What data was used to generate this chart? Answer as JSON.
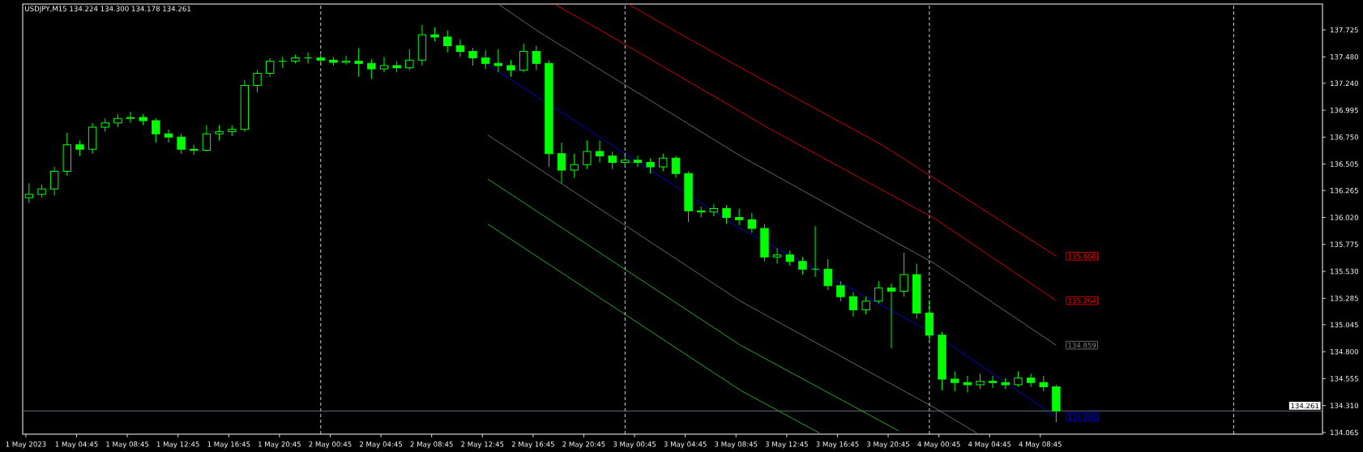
{
  "chart_data": {
    "type": "candlestick",
    "title": "USDJPY,M15  134.224 134.300 134.178 134.261",
    "color": "#00ff00",
    "x": [
      "2023-05-01T01:00",
      "2023-05-01T02:00",
      "2023-05-01T03:00",
      "2023-05-01T04:00",
      "2023-05-01T05:00",
      "2023-05-01T06:00",
      "2023-05-01T07:00",
      "2023-05-01T08:00",
      "2023-05-01T09:00",
      "2023-05-01T10:00",
      "2023-05-01T11:00",
      "2023-05-01T12:00",
      "2023-05-01T13:00",
      "2023-05-01T14:00",
      "2023-05-01T15:00",
      "2023-05-01T16:00",
      "2023-05-01T17:00",
      "2023-05-01T18:00",
      "2023-05-01T19:00",
      "2023-05-01T20:00",
      "2023-05-01T21:00",
      "2023-05-01T22:00",
      "2023-05-01T23:00",
      "2023-05-02T00:00",
      "2023-05-02T01:00",
      "2023-05-02T02:00",
      "2023-05-02T03:00",
      "2023-05-02T04:00",
      "2023-05-02T05:00",
      "2023-05-02T06:00",
      "2023-05-02T07:00",
      "2023-05-02T08:00",
      "2023-05-02T09:00",
      "2023-05-02T10:00",
      "2023-05-02T11:00",
      "2023-05-02T12:00",
      "2023-05-02T13:00",
      "2023-05-02T14:00",
      "2023-05-02T15:00",
      "2023-05-02T16:00",
      "2023-05-02T17:00",
      "2023-05-02T18:00",
      "2023-05-02T19:00",
      "2023-05-02T20:00",
      "2023-05-02T21:00",
      "2023-05-02T22:00",
      "2023-05-02T23:00",
      "2023-05-03T00:00",
      "2023-05-03T01:00",
      "2023-05-03T02:00",
      "2023-05-03T03:00",
      "2023-05-03T04:00",
      "2023-05-03T05:00",
      "2023-05-03T06:00",
      "2023-05-03T07:00",
      "2023-05-03T08:00",
      "2023-05-03T09:00",
      "2023-05-03T10:00",
      "2023-05-03T11:00",
      "2023-05-03T12:00",
      "2023-05-03T13:00",
      "2023-05-03T14:00",
      "2023-05-03T15:00",
      "2023-05-03T16:00",
      "2023-05-03T17:00",
      "2023-05-03T18:00",
      "2023-05-03T19:00",
      "2023-05-03T20:00",
      "2023-05-03T21:00",
      "2023-05-03T22:00",
      "2023-05-03T23:00",
      "2023-05-04T00:00",
      "2023-05-04T01:00",
      "2023-05-04T02:00",
      "2023-05-04T03:00",
      "2023-05-04T04:00",
      "2023-05-04T05:00",
      "2023-05-04T06:00",
      "2023-05-04T07:00",
      "2023-05-04T08:00",
      "2023-05-04T09:00",
      "2023-05-04T10:00"
    ],
    "ohlc": [
      [
        136.2,
        136.33,
        136.15,
        136.23
      ],
      [
        136.23,
        136.32,
        136.2,
        136.28
      ],
      [
        136.28,
        136.48,
        136.22,
        136.44
      ],
      [
        136.44,
        136.79,
        136.4,
        136.68
      ],
      [
        136.68,
        136.72,
        136.58,
        136.64
      ],
      [
        136.64,
        136.88,
        136.6,
        136.84
      ],
      [
        136.84,
        136.92,
        136.8,
        136.88
      ],
      [
        136.88,
        136.96,
        136.84,
        136.92
      ],
      [
        136.92,
        136.98,
        136.88,
        136.93
      ],
      [
        136.93,
        136.96,
        136.86,
        136.9
      ],
      [
        136.9,
        136.92,
        136.7,
        136.78
      ],
      [
        136.78,
        136.82,
        136.7,
        136.75
      ],
      [
        136.75,
        136.78,
        136.6,
        136.64
      ],
      [
        136.64,
        136.68,
        136.59,
        136.63
      ],
      [
        136.63,
        136.86,
        136.62,
        136.78
      ],
      [
        136.78,
        136.86,
        136.72,
        136.8
      ],
      [
        136.8,
        136.86,
        136.76,
        136.82
      ],
      [
        136.82,
        137.27,
        136.8,
        137.22
      ],
      [
        137.22,
        137.36,
        137.16,
        137.33
      ],
      [
        137.33,
        137.47,
        137.3,
        137.44
      ],
      [
        137.44,
        137.48,
        137.38,
        137.44
      ],
      [
        137.44,
        137.5,
        137.42,
        137.47
      ],
      [
        137.47,
        137.52,
        137.42,
        137.47
      ],
      [
        137.47,
        137.5,
        137.4,
        137.45
      ],
      [
        137.45,
        137.48,
        137.4,
        137.43
      ],
      [
        137.43,
        137.49,
        137.41,
        137.44
      ],
      [
        137.44,
        137.56,
        137.3,
        137.42
      ],
      [
        137.42,
        137.46,
        137.28,
        137.37
      ],
      [
        137.37,
        137.48,
        137.34,
        137.4
      ],
      [
        137.4,
        137.44,
        137.34,
        137.38
      ],
      [
        137.38,
        137.55,
        137.36,
        137.45
      ],
      [
        137.45,
        137.77,
        137.4,
        137.68
      ],
      [
        137.68,
        137.75,
        137.62,
        137.66
      ],
      [
        137.66,
        137.72,
        137.52,
        137.58
      ],
      [
        137.58,
        137.64,
        137.48,
        137.53
      ],
      [
        137.53,
        137.56,
        137.4,
        137.47
      ],
      [
        137.47,
        137.54,
        137.37,
        137.42
      ],
      [
        137.42,
        137.55,
        137.34,
        137.4
      ],
      [
        137.4,
        137.45,
        137.3,
        137.36
      ],
      [
        137.36,
        137.6,
        137.34,
        137.53
      ],
      [
        137.53,
        137.58,
        137.36,
        137.42
      ],
      [
        137.42,
        137.45,
        136.48,
        136.6
      ],
      [
        136.6,
        136.7,
        136.33,
        136.45
      ],
      [
        136.45,
        136.6,
        136.38,
        136.5
      ],
      [
        136.5,
        136.72,
        136.46,
        136.62
      ],
      [
        136.62,
        136.72,
        136.52,
        136.58
      ],
      [
        136.58,
        136.62,
        136.46,
        136.52
      ],
      [
        136.52,
        136.6,
        136.48,
        136.54
      ],
      [
        136.54,
        136.58,
        136.48,
        136.52
      ],
      [
        136.52,
        136.56,
        136.42,
        136.48
      ],
      [
        136.48,
        136.6,
        136.44,
        136.56
      ],
      [
        136.56,
        136.58,
        136.38,
        136.42
      ],
      [
        136.42,
        136.44,
        135.98,
        136.08
      ],
      [
        136.08,
        136.12,
        136.02,
        136.07
      ],
      [
        136.07,
        136.14,
        136.03,
        136.1
      ],
      [
        136.1,
        136.13,
        135.96,
        136.02
      ],
      [
        136.02,
        136.1,
        135.95,
        136.0
      ],
      [
        136.0,
        136.06,
        135.88,
        135.92
      ],
      [
        135.92,
        135.96,
        135.62,
        135.66
      ],
      [
        135.66,
        135.74,
        135.6,
        135.68
      ],
      [
        135.68,
        135.72,
        135.58,
        135.62
      ],
      [
        135.62,
        135.66,
        135.5,
        135.55
      ],
      [
        135.55,
        135.94,
        135.48,
        135.55
      ],
      [
        135.55,
        135.64,
        135.36,
        135.4
      ],
      [
        135.4,
        135.44,
        135.26,
        135.3
      ],
      [
        135.3,
        135.34,
        135.12,
        135.18
      ],
      [
        135.18,
        135.3,
        135.14,
        135.26
      ],
      [
        135.26,
        135.44,
        135.24,
        135.38
      ],
      [
        135.38,
        135.42,
        134.83,
        135.35
      ],
      [
        135.35,
        135.7,
        135.3,
        135.5
      ],
      [
        135.5,
        135.6,
        135.1,
        135.15
      ],
      [
        135.15,
        135.26,
        134.9,
        134.95
      ],
      [
        134.95,
        134.98,
        134.45,
        134.55
      ],
      [
        134.55,
        134.62,
        134.44,
        134.52
      ],
      [
        134.52,
        134.58,
        134.43,
        134.5
      ],
      [
        134.5,
        134.6,
        134.46,
        134.53
      ],
      [
        134.53,
        134.58,
        134.47,
        134.52
      ],
      [
        134.52,
        134.56,
        134.46,
        134.5
      ],
      [
        134.5,
        134.62,
        134.48,
        134.56
      ],
      [
        134.56,
        134.6,
        134.48,
        134.52
      ],
      [
        134.52,
        134.58,
        134.44,
        134.48
      ],
      [
        134.48,
        134.5,
        134.16,
        134.261
      ]
    ],
    "series": [
      {
        "type": "line",
        "color": "#ff0000",
        "x": [
          "2023-05-03T00:15",
          "2023-05-03T04:00",
          "2023-05-03T11:30",
          "2023-05-03T20:15",
          "2023-05-04T10:00"
        ],
        "values": [
          137.96,
          137.71,
          137.23,
          136.68,
          135.668
        ],
        "value_labels": [
          null,
          null,
          null,
          null,
          "135.668"
        ]
      },
      {
        "type": "line",
        "color": "#ff0000",
        "x": [
          "2023-05-02T18:25",
          "2023-05-02T22:15",
          "2023-05-03T11:30",
          "2023-05-04T00:25",
          "2023-05-04T10:00"
        ],
        "values": [
          137.96,
          137.71,
          136.82,
          136.01,
          135.264
        ],
        "value_labels": [
          null,
          null,
          null,
          null,
          "135.264"
        ]
      },
      {
        "type": "line",
        "color": "#808080",
        "x": [
          "2023-05-02T14:00",
          "2023-05-02T17:10",
          "2023-05-03T09:05",
          "2023-05-04T00:25",
          "2023-05-04T10:00"
        ],
        "values": [
          137.96,
          137.71,
          136.58,
          135.6,
          134.859
        ],
        "value_labels": [
          null,
          null,
          null,
          null,
          "134.859"
        ]
      },
      {
        "type": "line",
        "color": "#0000ff",
        "x": [
          "2023-05-02T13:10",
          "2023-05-03T09:05",
          "2023-05-04T00:25",
          "2023-05-04T10:00"
        ],
        "values": [
          137.41,
          135.92,
          134.96,
          134.205
        ],
        "value_labels": [
          null,
          null,
          null,
          "134.205"
        ]
      },
      {
        "type": "line",
        "color": "#808080",
        "x": [
          "2023-05-02T13:10",
          "2023-05-03T09:05",
          "2023-05-04T00:25",
          "2023-05-04T03:45"
        ],
        "values": [
          136.77,
          135.26,
          134.29,
          134.06
        ]
      },
      {
        "type": "line",
        "color": "#32cd32",
        "x": [
          "2023-05-02T13:10",
          "2023-05-03T09:05",
          "2023-05-03T21:35"
        ],
        "values": [
          136.37,
          134.86,
          134.08
        ]
      },
      {
        "type": "line",
        "color": "#32cd32",
        "x": [
          "2023-05-02T13:10",
          "2023-05-03T09:05",
          "2023-05-03T15:20"
        ],
        "values": [
          135.96,
          134.45,
          134.06
        ]
      }
    ],
    "xlim": [
      "2023-05-01T00:30",
      "2023-05-05T07:00"
    ],
    "ylim": [
      134.05,
      137.96
    ],
    "xticks": [
      {
        "value": "2023-05-01T00:45",
        "label": "1 May 2023"
      },
      {
        "value": "2023-05-01T04:45",
        "label": "1 May 04:45"
      },
      {
        "value": "2023-05-01T08:45",
        "label": "1 May 08:45"
      },
      {
        "value": "2023-05-01T12:45",
        "label": "1 May 12:45"
      },
      {
        "value": "2023-05-01T16:45",
        "label": "1 May 16:45"
      },
      {
        "value": "2023-05-01T20:45",
        "label": "1 May 20:45"
      },
      {
        "value": "2023-05-02T00:45",
        "label": "2 May 00:45"
      },
      {
        "value": "2023-05-02T04:45",
        "label": "2 May 04:45"
      },
      {
        "value": "2023-05-02T08:45",
        "label": "2 May 08:45"
      },
      {
        "value": "2023-05-02T12:45",
        "label": "2 May 12:45"
      },
      {
        "value": "2023-05-02T16:45",
        "label": "2 May 16:45"
      },
      {
        "value": "2023-05-02T20:45",
        "label": "2 May 20:45"
      },
      {
        "value": "2023-05-03T00:45",
        "label": "3 May 00:45"
      },
      {
        "value": "2023-05-03T04:45",
        "label": "3 May 04:45"
      },
      {
        "value": "2023-05-03T08:45",
        "label": "3 May 08:45"
      },
      {
        "value": "2023-05-03T12:45",
        "label": "3 May 12:45"
      },
      {
        "value": "2023-05-03T16:45",
        "label": "3 May 16:45"
      },
      {
        "value": "2023-05-03T20:45",
        "label": "3 May 20:45"
      },
      {
        "value": "2023-05-04T00:45",
        "label": "4 May 00:45"
      },
      {
        "value": "2023-05-04T04:45",
        "label": "4 May 04:45"
      },
      {
        "value": "2023-05-04T08:45",
        "label": "4 May 08:45"
      }
    ],
    "yticks": [
      134.065,
      {
        "value": 134.31,
        "label": "134.310"
      },
      134.555,
      {
        "value": 134.8,
        "label": "134.800"
      },
      135.045,
      135.285,
      {
        "value": 135.53,
        "label": "135.530"
      },
      135.775,
      {
        "value": 136.02,
        "label": "136.020"
      },
      136.265,
      136.505,
      {
        "value": 136.75,
        "label": "136.750"
      },
      136.995,
      {
        "value": 137.24,
        "label": "137.240"
      },
      {
        "value": 137.48,
        "label": "137.480"
      },
      137.725
    ],
    "ref_lines": [
      {
        "axis": "x",
        "value": "2023-05-02T00:00",
        "color": "#ffffff",
        "line_style": "dashed"
      },
      {
        "axis": "x",
        "value": "2023-05-03T00:00",
        "color": "#ffffff",
        "line_style": "dashed"
      },
      {
        "axis": "x",
        "value": "2023-05-04T00:00",
        "color": "#ffffff",
        "line_style": "dashed"
      },
      {
        "axis": "x",
        "value": "2023-05-05T00:00",
        "color": "#ffffff",
        "line_style": "dashed"
      },
      {
        "axis": "y",
        "value": 134.261,
        "label": "134.261",
        "color": "#778899",
        "line_style": "solid"
      }
    ]
  }
}
